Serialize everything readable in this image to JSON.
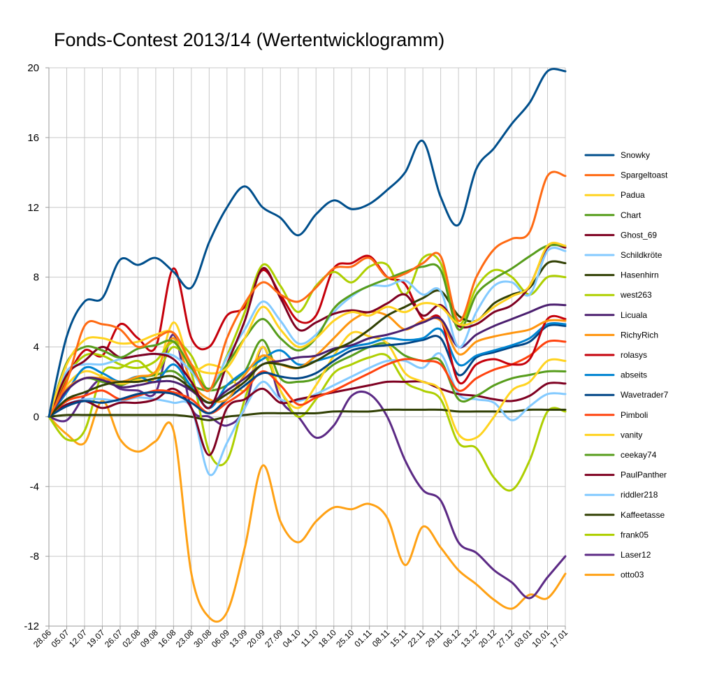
{
  "chart_data": {
    "type": "line",
    "title": "Fonds-Contest 2013/14 (Wertentwicklogramm)",
    "xlabel": "",
    "ylabel": "",
    "ylim": [
      -12,
      20
    ],
    "yticks": [
      20,
      16,
      12,
      8,
      4,
      0,
      -4,
      -8,
      -12
    ],
    "grid": true,
    "legend": "right",
    "categories": [
      "28.06",
      "05.07",
      "12.07",
      "19.07",
      "26.07",
      "02.08",
      "09.08",
      "16.08",
      "23.08",
      "30.08",
      "06.09",
      "13.09",
      "20.09",
      "27.09",
      "04.10",
      "11.10",
      "18.10",
      "25.10",
      "01.11",
      "08.11",
      "15.11",
      "22.11",
      "29.11",
      "06.12",
      "13.12",
      "20.12",
      "27.12",
      "03.01",
      "10.01",
      "17.01"
    ],
    "series": [
      {
        "name": "Snowky",
        "color": "#004f8c",
        "values": [
          0,
          4.6,
          6.6,
          6.8,
          9.0,
          8.7,
          9.1,
          8.3,
          7.4,
          10.0,
          12.0,
          13.2,
          12.0,
          11.4,
          10.4,
          11.6,
          12.4,
          11.9,
          12.2,
          13.0,
          14.0,
          15.8,
          12.6,
          11.0,
          14.2,
          15.4,
          16.8,
          18.0,
          19.8,
          19.8
        ]
      },
      {
        "name": "Spargeltoast",
        "color": "#ff6a13",
        "values": [
          0,
          2.0,
          5.2,
          5.3,
          5.0,
          4.0,
          4.5,
          4.8,
          3.0,
          1.5,
          4.5,
          6.5,
          7.7,
          7.0,
          6.6,
          7.4,
          8.5,
          8.6,
          9.1,
          8.0,
          8.2,
          8.8,
          9.2,
          5.5,
          8.0,
          9.6,
          10.2,
          10.6,
          13.8,
          13.8
        ]
      },
      {
        "name": "Padua",
        "color": "#ffd320",
        "values": [
          0,
          3.0,
          4.4,
          4.5,
          4.2,
          4.3,
          4.7,
          4.8,
          3.0,
          2.5,
          2.8,
          4.5,
          6.3,
          5.0,
          4.0,
          4.5,
          5.5,
          6.0,
          5.8,
          6.3,
          6.0,
          6.5,
          6.3,
          5.3,
          5.5,
          6.3,
          6.9,
          7.5,
          9.8,
          9.8
        ]
      },
      {
        "name": "Chart",
        "color": "#579d1c",
        "values": [
          0,
          3.1,
          4.0,
          3.8,
          3.4,
          3.9,
          4.1,
          4.3,
          2.8,
          1.6,
          3.0,
          4.5,
          5.6,
          4.5,
          3.8,
          4.5,
          6.2,
          7.0,
          7.5,
          7.9,
          8.3,
          8.6,
          8.4,
          5.0,
          7.0,
          7.9,
          8.5,
          9.2,
          9.8,
          9.8
        ]
      },
      {
        "name": "Ghost_69",
        "color": "#7e0021",
        "values": [
          0,
          2.4,
          3.2,
          4.0,
          3.4,
          3.5,
          3.6,
          3.3,
          2.0,
          0.5,
          3.0,
          5.5,
          8.5,
          6.8,
          5.0,
          5.4,
          5.9,
          6.1,
          6.0,
          6.5,
          7.0,
          5.8,
          6.4,
          5.2,
          5.3,
          6.0,
          6.4,
          7.5,
          9.7,
          9.7
        ]
      },
      {
        "name": "Schildkröte",
        "color": "#83caff",
        "values": [
          0,
          2.6,
          3.0,
          3.0,
          3.3,
          3.5,
          3.6,
          3.5,
          2.6,
          1.5,
          3.4,
          5.0,
          6.6,
          5.5,
          4.2,
          4.7,
          6.0,
          6.9,
          7.5,
          7.5,
          7.8,
          7.0,
          7.2,
          4.0,
          6.0,
          7.5,
          7.7,
          7.0,
          9.5,
          9.5
        ]
      },
      {
        "name": "Hasenhirn",
        "color": "#314004",
        "values": [
          0,
          1.0,
          1.4,
          1.8,
          2.0,
          2.0,
          2.2,
          2.3,
          1.6,
          0.8,
          1.3,
          2.0,
          3.0,
          3.0,
          2.8,
          3.2,
          3.8,
          4.3,
          5.0,
          5.8,
          6.3,
          6.8,
          7.2,
          5.8,
          5.5,
          6.5,
          7.0,
          7.4,
          8.8,
          8.8
        ]
      },
      {
        "name": "west263",
        "color": "#aecf00",
        "values": [
          0,
          2.3,
          3.5,
          3.5,
          3.0,
          2.8,
          3.2,
          4.3,
          3.5,
          1.5,
          3.5,
          6.0,
          8.7,
          7.5,
          6.0,
          7.5,
          8.3,
          7.7,
          8.6,
          8.7,
          7.0,
          9.1,
          8.8,
          5.3,
          7.4,
          8.4,
          8.0,
          7.0,
          8.0,
          8.0
        ]
      },
      {
        "name": "Licuala",
        "color": "#4b1f6f",
        "values": [
          0,
          1.5,
          2.2,
          2.1,
          1.7,
          1.8,
          2.0,
          2.0,
          1.5,
          0.8,
          1.5,
          2.2,
          3.0,
          3.2,
          3.4,
          3.5,
          3.9,
          4.1,
          4.5,
          4.7,
          5.0,
          5.4,
          5.6,
          4.0,
          4.7,
          5.2,
          5.6,
          6.0,
          6.4,
          6.4
        ]
      },
      {
        "name": "RichyRich",
        "color": "#ff950e",
        "values": [
          0,
          1.6,
          2.2,
          2.2,
          2.0,
          2.3,
          2.6,
          4.5,
          2.0,
          1.0,
          1.0,
          2.4,
          3.5,
          3.0,
          2.8,
          3.5,
          4.5,
          5.5,
          6.0,
          5.8,
          5.0,
          5.5,
          5.5,
          3.6,
          4.3,
          4.6,
          4.8,
          5.0,
          5.5,
          5.5
        ]
      },
      {
        "name": "rolasys",
        "color": "#c5000b",
        "values": [
          0,
          2.2,
          3.8,
          3.5,
          5.3,
          4.5,
          4.0,
          8.5,
          4.5,
          4.0,
          5.8,
          6.3,
          8.4,
          7.0,
          5.5,
          5.8,
          8.5,
          8.8,
          9.2,
          8.0,
          7.6,
          5.6,
          5.6,
          2.0,
          3.0,
          3.3,
          3.0,
          3.3,
          5.6,
          5.6
        ]
      },
      {
        "name": "abseits",
        "color": "#0084d1",
        "values": [
          0,
          1.4,
          2.8,
          2.5,
          2.0,
          2.3,
          2.0,
          3.0,
          1.7,
          0.5,
          1.8,
          2.6,
          3.3,
          3.8,
          3.0,
          3.2,
          3.5,
          4.0,
          4.2,
          4.5,
          4.4,
          4.5,
          5.0,
          3.0,
          3.5,
          3.8,
          4.1,
          4.5,
          5.3,
          5.3
        ]
      },
      {
        "name": "Wavetrader7",
        "color": "#004586",
        "values": [
          0,
          0.6,
          0.9,
          0.8,
          1.0,
          1.3,
          1.4,
          1.3,
          0.8,
          0.2,
          1.0,
          1.8,
          2.5,
          2.3,
          2.2,
          2.5,
          3.2,
          3.8,
          4.0,
          4.1,
          4.2,
          4.4,
          4.5,
          2.4,
          3.4,
          3.7,
          4.0,
          4.3,
          5.2,
          5.2
        ]
      },
      {
        "name": "Pimboli",
        "color": "#ff420e",
        "values": [
          0,
          0.9,
          1.2,
          1.5,
          1.0,
          1.2,
          1.5,
          1.4,
          1.0,
          0.2,
          0.8,
          1.5,
          2.6,
          1.8,
          0.7,
          1.1,
          1.5,
          2.0,
          2.5,
          3.0,
          3.3,
          3.2,
          3.0,
          1.5,
          2.2,
          2.7,
          3.0,
          3.5,
          4.3,
          4.3
        ]
      },
      {
        "name": "vanity",
        "color": "#ffd320",
        "values": [
          0,
          1.8,
          2.6,
          2.3,
          1.9,
          2.1,
          2.3,
          5.4,
          2.8,
          3.0,
          2.6,
          1.5,
          4.0,
          1.5,
          0.5,
          1.8,
          3.5,
          4.8,
          4.6,
          4.2,
          2.5,
          2.0,
          1.5,
          -1.0,
          -1.2,
          0.0,
          1.5,
          2.0,
          3.2,
          3.2
        ]
      },
      {
        "name": "ceekay74",
        "color": "#579d1c",
        "values": [
          0,
          1.5,
          2.2,
          2.0,
          1.8,
          2.2,
          2.4,
          2.6,
          1.8,
          1.5,
          1.8,
          2.6,
          4.4,
          2.2,
          2.0,
          2.2,
          3.0,
          3.5,
          4.0,
          4.2,
          3.5,
          3.2,
          3.2,
          1.0,
          1.2,
          1.8,
          2.2,
          2.4,
          2.6,
          2.6
        ]
      },
      {
        "name": "PaulPanther",
        "color": "#7e0021",
        "values": [
          0,
          0.7,
          0.9,
          0.5,
          0.8,
          0.8,
          1.0,
          1.6,
          0.5,
          -2.2,
          0.5,
          1.0,
          1.6,
          0.8,
          1.0,
          1.2,
          1.4,
          1.6,
          1.8,
          2.0,
          2.0,
          2.0,
          1.6,
          1.3,
          1.2,
          1.0,
          0.9,
          1.2,
          1.9,
          1.9
        ]
      },
      {
        "name": "riddler218",
        "color": "#83caff",
        "values": [
          0,
          0.7,
          1.0,
          1.0,
          0.9,
          1.1,
          1.0,
          0.8,
          0.5,
          -3.3,
          -1.5,
          0.5,
          2.0,
          1.0,
          0.9,
          1.3,
          1.8,
          2.3,
          2.8,
          3.2,
          3.2,
          2.8,
          3.6,
          1.3,
          1.0,
          0.8,
          -0.2,
          0.6,
          1.3,
          1.3
        ]
      },
      {
        "name": "Kaffeetasse",
        "color": "#314004",
        "values": [
          0,
          0.1,
          0.1,
          0.1,
          0.1,
          0.1,
          0.1,
          0.1,
          0.0,
          -0.2,
          0.0,
          0.1,
          0.2,
          0.2,
          0.2,
          0.2,
          0.3,
          0.3,
          0.3,
          0.4,
          0.4,
          0.4,
          0.4,
          0.3,
          0.3,
          0.3,
          0.3,
          0.4,
          0.4,
          0.4
        ]
      },
      {
        "name": "frank05",
        "color": "#aecf00",
        "values": [
          0,
          -1.3,
          -0.8,
          2.5,
          2.8,
          3.2,
          2.5,
          4.0,
          2.5,
          -2.0,
          -2.5,
          1.0,
          3.5,
          1.5,
          0.0,
          1.0,
          2.5,
          3.0,
          3.4,
          3.5,
          2.0,
          1.5,
          1.0,
          -1.5,
          -1.8,
          -3.5,
          -4.2,
          -2.5,
          0.3,
          0.3
        ]
      },
      {
        "name": "Laser12",
        "color": "#5c2a85",
        "values": [
          0,
          -0.2,
          1.2,
          2.2,
          1.6,
          1.5,
          1.4,
          4.7,
          0.5,
          0.0,
          -0.5,
          0.5,
          4.0,
          1.0,
          0.0,
          -1.2,
          -0.5,
          1.2,
          1.3,
          0.0,
          -2.5,
          -4.2,
          -4.8,
          -7.2,
          -7.8,
          -8.8,
          -9.5,
          -10.4,
          -9.2,
          -8.0
        ]
      },
      {
        "name": "otto03",
        "color": "#ffa114",
        "values": [
          0,
          -1.0,
          -1.5,
          0.9,
          -1.3,
          -2.0,
          -1.4,
          -0.8,
          -9.0,
          -11.5,
          -11.2,
          -7.5,
          -2.8,
          -6.0,
          -7.2,
          -6.0,
          -5.2,
          -5.3,
          -5.0,
          -5.8,
          -8.5,
          -6.3,
          -7.5,
          -8.8,
          -9.6,
          -10.5,
          -11.0,
          -10.2,
          -10.4,
          -9.0
        ]
      }
    ]
  }
}
